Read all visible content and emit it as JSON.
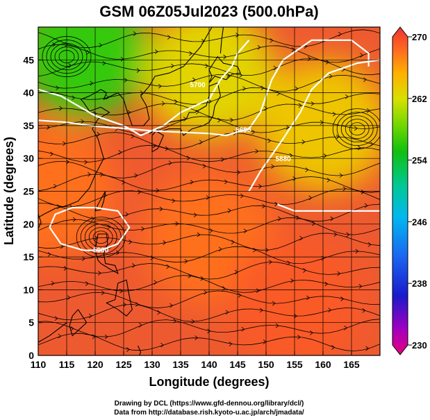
{
  "chart_data": {
    "type": "heatmap",
    "title": "GSM 06Z05Jul2023 (500.0hPa)",
    "xlabel": "Longitude (degrees)",
    "ylabel": "Latitude  (degrees)",
    "xlim": [
      110,
      170
    ],
    "ylim": [
      0,
      50
    ],
    "x_ticks": [
      "110",
      "115",
      "120",
      "125",
      "130",
      "135",
      "140",
      "145",
      "150",
      "155",
      "160",
      "165"
    ],
    "y_ticks": [
      "0",
      "5",
      "10",
      "15",
      "20",
      "25",
      "30",
      "35",
      "40",
      "45"
    ],
    "grid": true,
    "colorbar": {
      "range": [
        230,
        270
      ],
      "ticks": [
        "230",
        "238",
        "246",
        "254",
        "262",
        "270"
      ]
    },
    "color_regions": [
      {
        "lon": 118,
        "lat": 46,
        "value": 256
      },
      {
        "lon": 140,
        "lat": 43,
        "value": 262
      },
      {
        "lon": 160,
        "lat": 35,
        "value": 263
      },
      {
        "lon": 112,
        "lat": 25,
        "value": 267
      },
      {
        "lon": 140,
        "lat": 18,
        "value": 267
      },
      {
        "lon": 155,
        "lat": 8,
        "value": 268
      }
    ],
    "contours": [
      {
        "level": 5700,
        "label": "5700"
      },
      {
        "level": 5800,
        "label": "5800"
      },
      {
        "level": 5880,
        "label": "5880"
      },
      {
        "level": 5900,
        "label": "5900"
      }
    ],
    "contour_labels": [
      {
        "text": "5700",
        "lon": 138,
        "lat": 41.3
      },
      {
        "text": "5800",
        "lon": 146,
        "lat": 34.4
      },
      {
        "text": "5880",
        "lon": 153,
        "lat": 30
      },
      {
        "text": "5900",
        "lon": 121,
        "lat": 16.1
      }
    ],
    "vortices": [
      {
        "lon": 115,
        "lat": 45.5
      },
      {
        "lon": 166,
        "lat": 34.5
      },
      {
        "lon": 121,
        "lat": 18
      }
    ],
    "colors": {
      "frame": "#000000",
      "grid": "#000000",
      "contour": "#ffffff",
      "coastline": "#000000",
      "streamline": "#000000"
    }
  },
  "credits": [
    "Drawing by DCL (https://www.gfd-dennou.org/library/dcl/)",
    "Data from http://database.rish.kyoto-u.ac.jp/arch/jmadata/"
  ]
}
